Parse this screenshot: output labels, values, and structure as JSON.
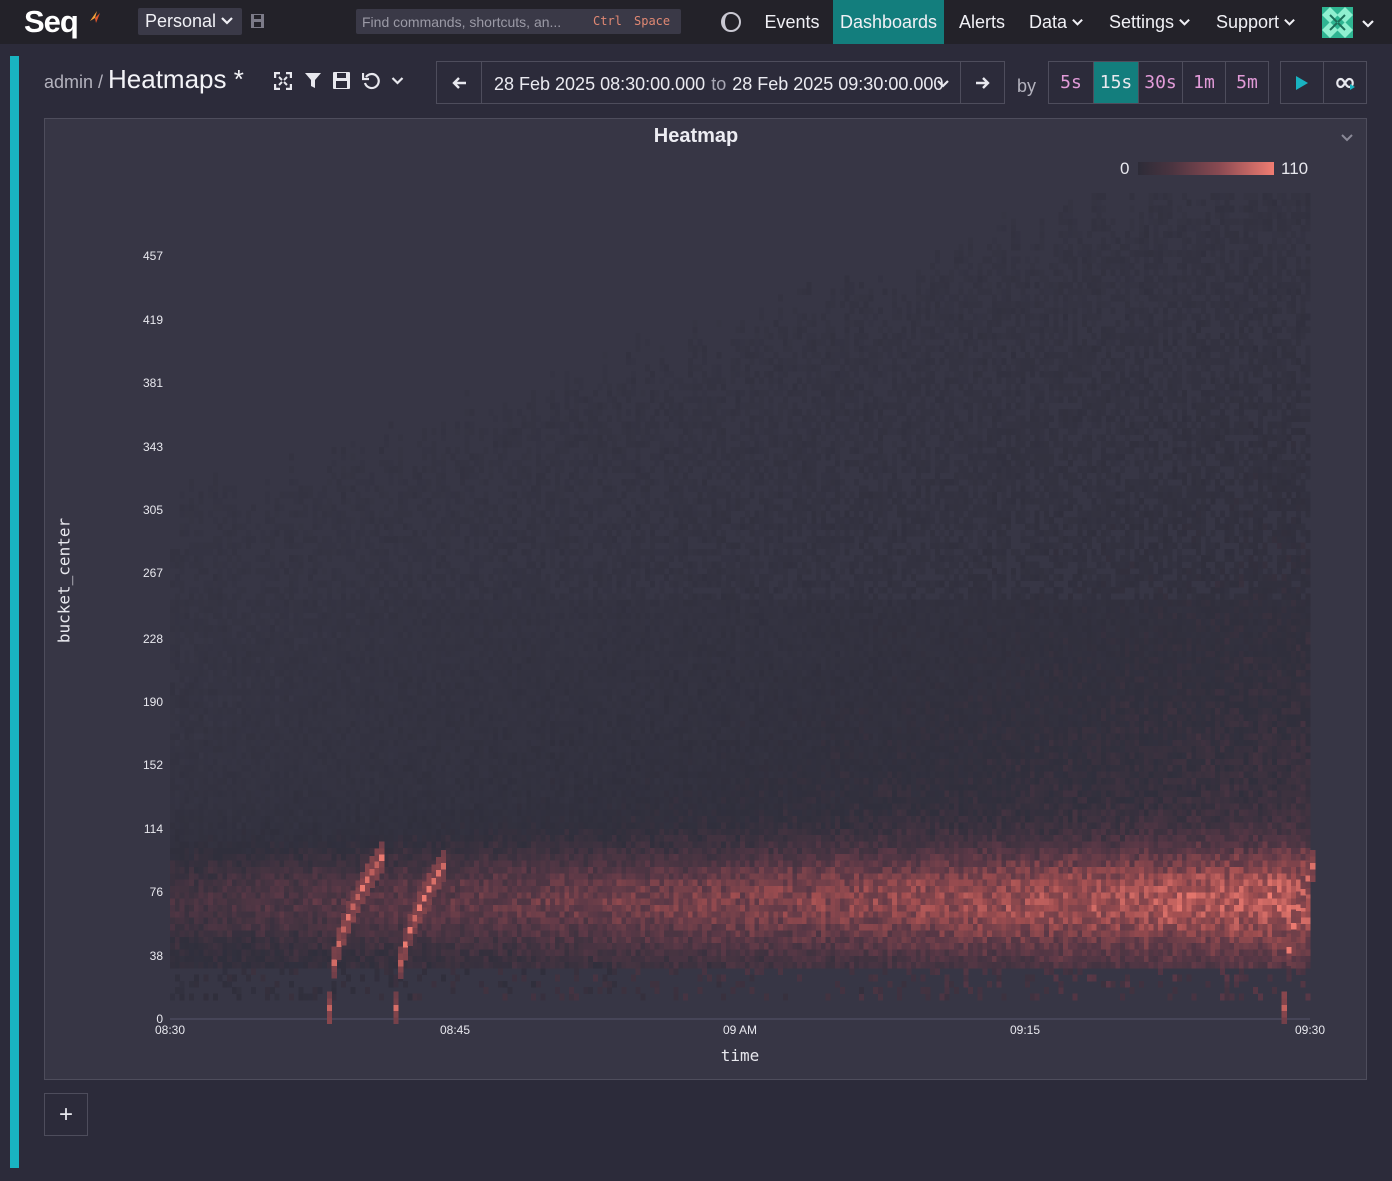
{
  "topbar": {
    "brand": "Seq",
    "workspace": "Personal",
    "command_placeholder": "Find commands, shortcuts, an...",
    "shortcut_key1": "Ctrl",
    "shortcut_key2": "Space",
    "nav": [
      {
        "label": "Events",
        "active": false
      },
      {
        "label": "Dashboards",
        "active": true
      },
      {
        "label": "Alerts",
        "active": false
      },
      {
        "label": "Data",
        "active": false,
        "dropdown": true
      },
      {
        "label": "Settings",
        "active": false,
        "dropdown": true
      },
      {
        "label": "Support",
        "active": false,
        "dropdown": true
      }
    ],
    "accent_color": "#137e7d"
  },
  "dashboard": {
    "owner": "admin",
    "separator": "/",
    "title": "Heatmaps *",
    "toolbar_icons": [
      "fullscreen-icon",
      "filter-icon",
      "save-icon",
      "undo-icon",
      "chevron-down-icon"
    ]
  },
  "timerange": {
    "from": "28 Feb 2025 08:30:00.000",
    "to_word": "to",
    "to": "28 Feb 2025 09:30:00.000",
    "by_label": "by",
    "intervals": [
      "5s",
      "15s",
      "30s",
      "1m",
      "5m"
    ],
    "selected_interval": "15s"
  },
  "panel": {
    "title": "Heatmap",
    "add_label": "+"
  },
  "chart_data": {
    "type": "heatmap",
    "title": "Heatmap",
    "xlabel": "time",
    "ylabel": "bucket_center",
    "x_ticks": [
      "08:30",
      "08:45",
      "09 AM",
      "09:15",
      "09:30"
    ],
    "y_ticks": [
      0,
      38,
      76,
      114,
      152,
      190,
      228,
      267,
      305,
      343,
      381,
      419,
      457
    ],
    "ylim": [
      0,
      495
    ],
    "xlim": [
      "08:30",
      "09:30"
    ],
    "legend": {
      "min": 0,
      "max": 110,
      "min_label": "0",
      "max_label": "110",
      "position": "top-right"
    },
    "colors": {
      "low": "#2d2c38",
      "mid": "#8a4a52",
      "high": "#f07d72",
      "background": "#373645"
    },
    "grid": false,
    "bin_minutes": 0.25,
    "spikes": [
      {
        "start": "08:38:15",
        "end": "08:41:00",
        "y_start": 5,
        "y_end": 95,
        "peak": 110
      },
      {
        "start": "08:41:45",
        "end": "08:44:15",
        "y_start": 5,
        "y_end": 90,
        "peak": 110
      },
      {
        "start": "09:28:30",
        "end": "09:30:00",
        "y_start": 5,
        "y_end": 90,
        "peak": 110
      }
    ],
    "band_center_y": 70,
    "band_peak": 45
  }
}
